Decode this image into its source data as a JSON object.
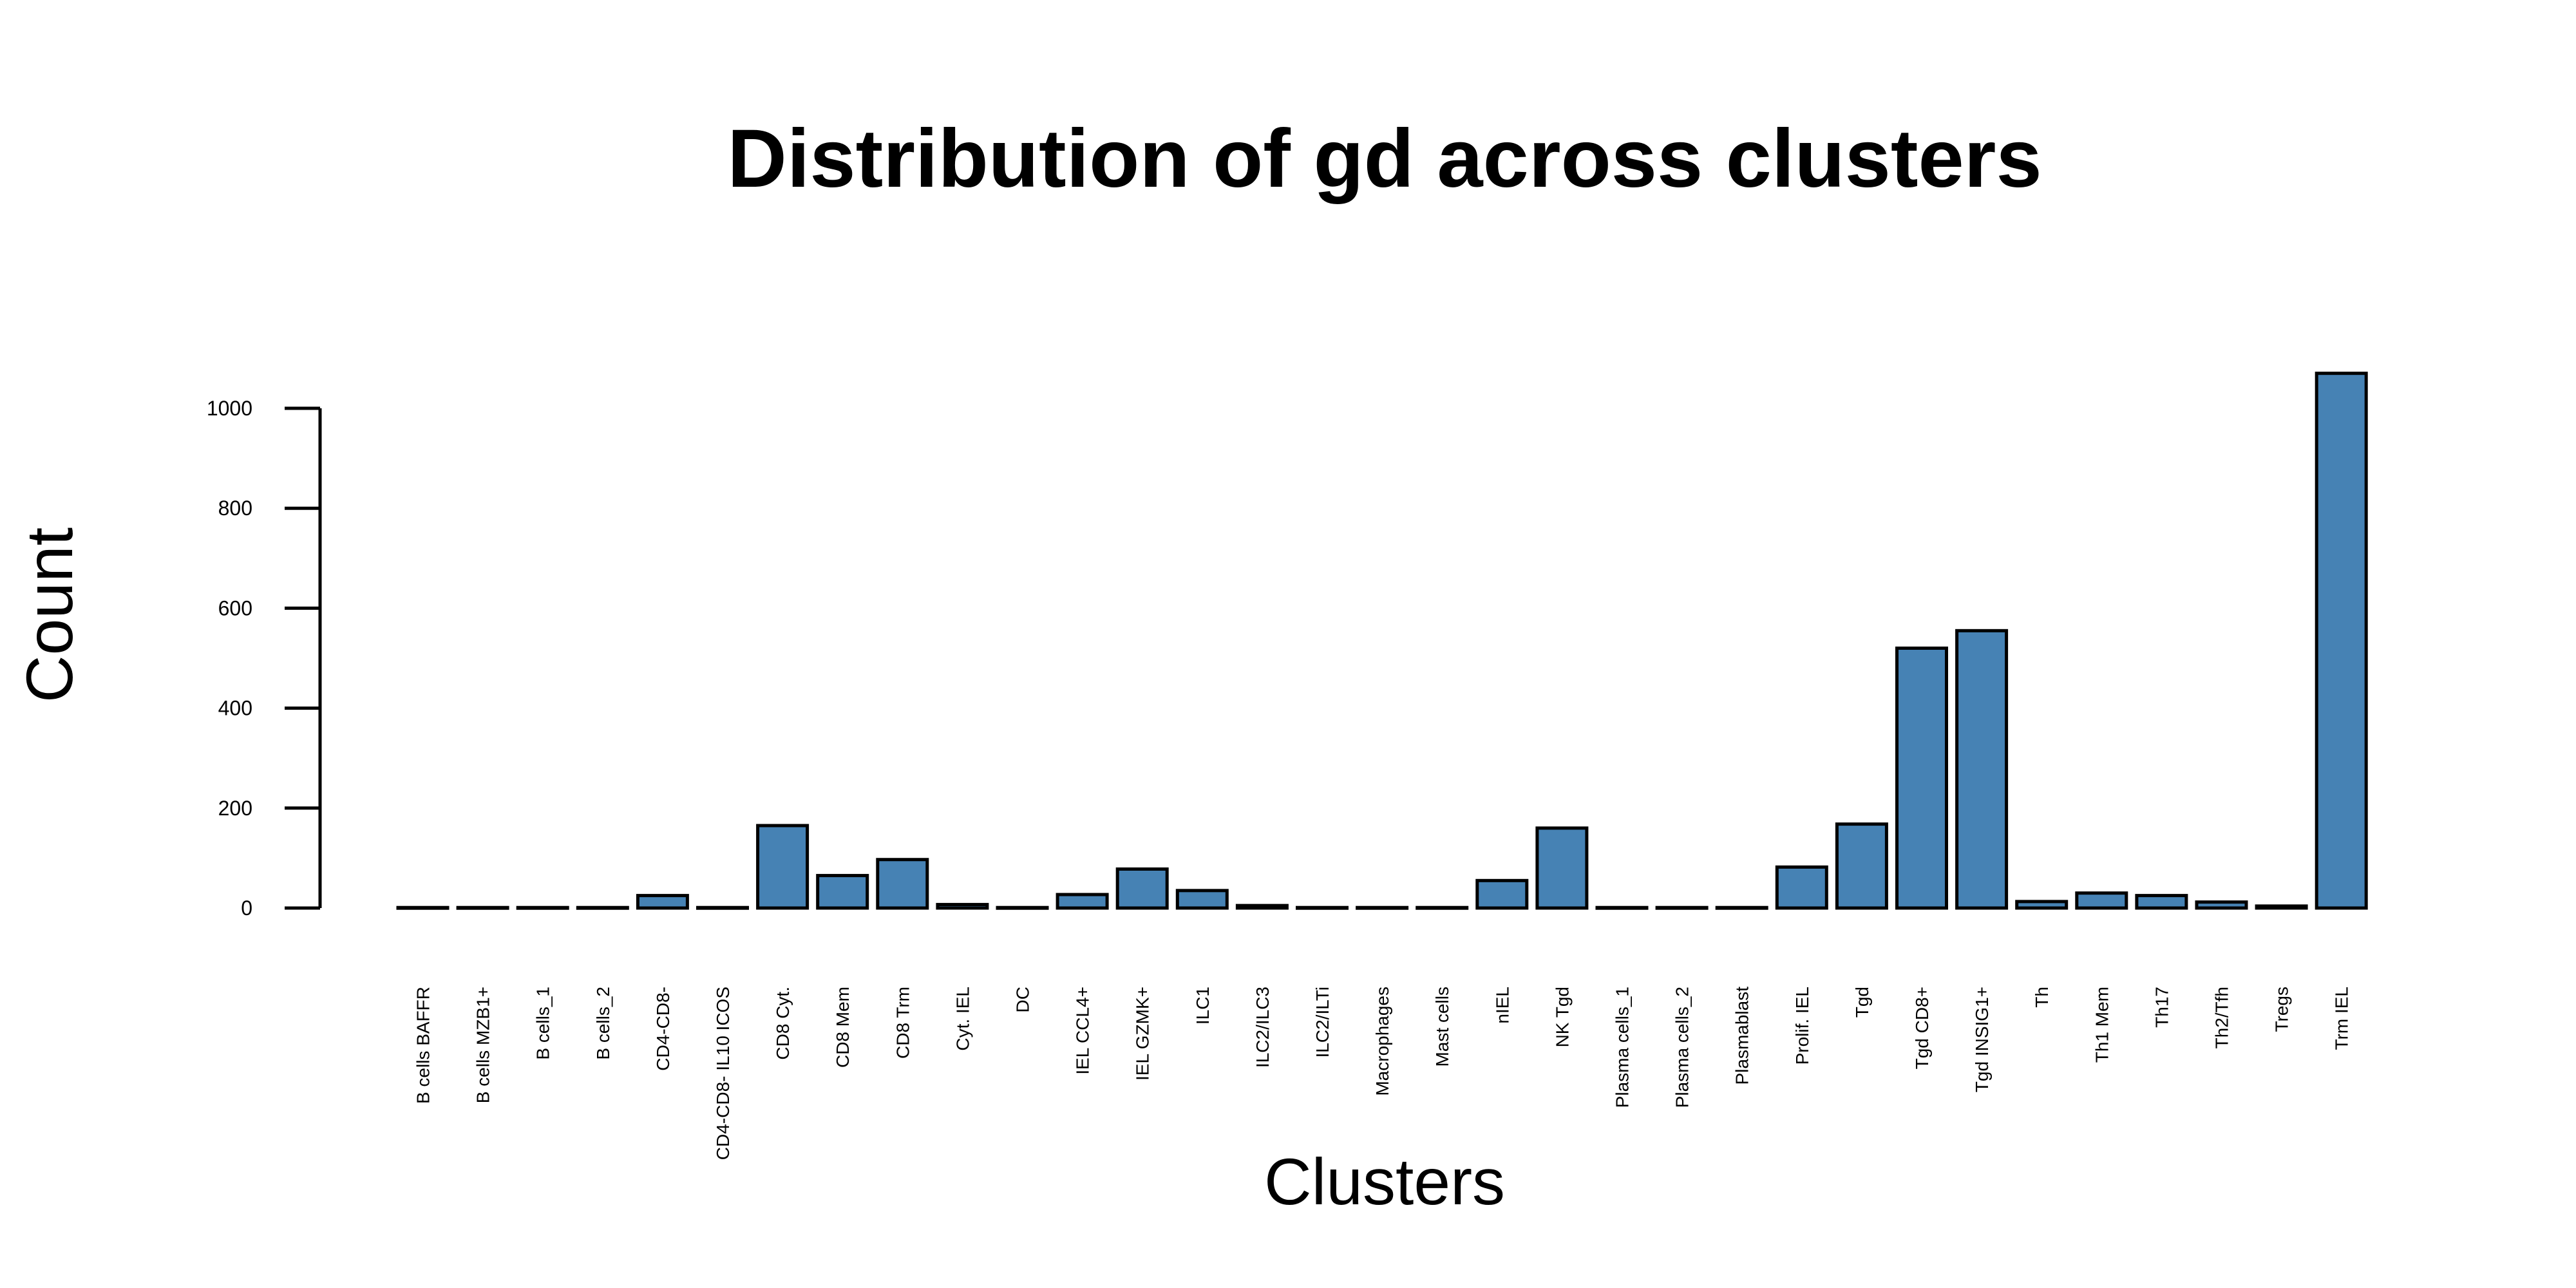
{
  "chart_data": {
    "type": "bar",
    "title": "Distribution of gd across clusters",
    "xlabel": "Clusters",
    "ylabel": "Count",
    "ylim": [
      0,
      1000
    ],
    "yticks": [
      0,
      200,
      400,
      600,
      800,
      1000
    ],
    "bar_color": "#4682B4",
    "grid": false,
    "categories": [
      "B cells BAFFR",
      "B cells MZB1+",
      "B cells_1",
      "B cells_2",
      "CD4-CD8-",
      "CD4-CD8- IL10 ICOS",
      "CD8 Cyt.",
      "CD8 Mem",
      "CD8 Trm",
      "Cyt. IEL",
      "DC",
      "IEL CCL4+",
      "IEL GZMK+",
      "ILC1",
      "ILC2/ILC3",
      "ILC2/ILTi",
      "Macrophages",
      "Mast cells",
      "nIEL",
      "NK Tgd",
      "Plasma cells_1",
      "Plasma cells_2",
      "Plasmablast",
      "Prolif. IEL",
      "Tgd",
      "Tgd CD8+",
      "Tgd INSIG1+",
      "Th",
      "Th1 Mem",
      "Th17",
      "Th2/Tfh",
      "Tregs",
      "Trm IEL"
    ],
    "values": [
      1,
      1,
      1,
      1,
      25,
      1,
      165,
      65,
      97,
      7,
      1,
      27,
      78,
      35,
      5,
      1,
      1,
      1,
      55,
      160,
      1,
      1,
      1,
      82,
      168,
      520,
      555,
      13,
      30,
      25,
      12,
      4,
      1070
    ]
  }
}
